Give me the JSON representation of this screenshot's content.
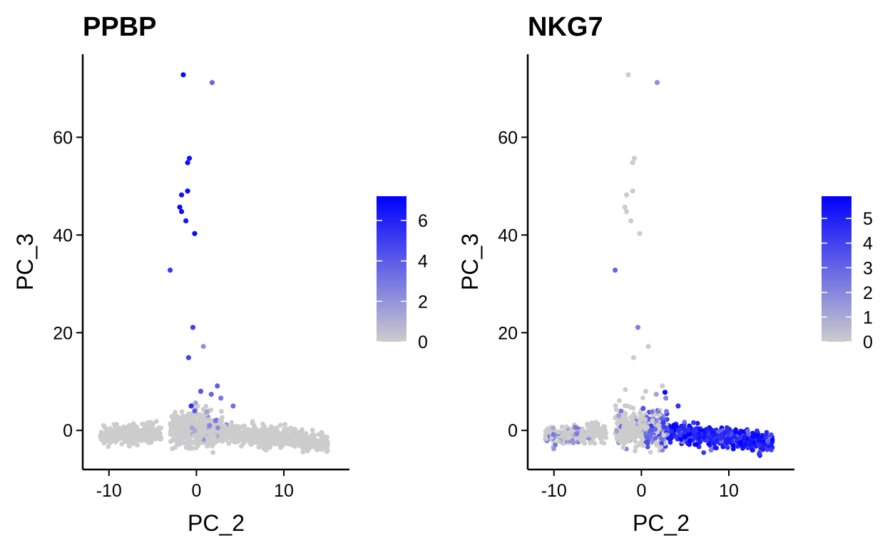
{
  "chart_data": [
    {
      "type": "scatter",
      "title": "PPBP",
      "xlabel": "PC_2",
      "ylabel": "PC_3",
      "xlim": [
        -13,
        17.5
      ],
      "ylim": [
        -8,
        77
      ],
      "xticks": [
        -10,
        0,
        10
      ],
      "yticks": [
        0,
        20,
        40,
        60
      ],
      "xtick_labels": [
        "-10",
        "0",
        "10"
      ],
      "ytick_labels": [
        "0",
        "20",
        "40",
        "60"
      ],
      "color_low": "#cccccc",
      "color_high": "#0000ff",
      "legend": {
        "placement": "right",
        "min": 0,
        "max": 7.2,
        "ticks": [
          0,
          2,
          4,
          6
        ],
        "tick_labels": [
          "0",
          "2",
          "4",
          "6"
        ]
      },
      "highlight_points": [
        {
          "x": -1.5,
          "y": 72.8,
          "v": 6.8
        },
        {
          "x": 1.8,
          "y": 71.2,
          "v": 3.5
        },
        {
          "x": -0.8,
          "y": 55.7,
          "v": 6.5
        },
        {
          "x": -1.0,
          "y": 54.8,
          "v": 6.7
        },
        {
          "x": -1.0,
          "y": 49.0,
          "v": 6.9
        },
        {
          "x": -1.7,
          "y": 48.2,
          "v": 6.6
        },
        {
          "x": -1.9,
          "y": 45.7,
          "v": 6.8
        },
        {
          "x": -1.7,
          "y": 44.8,
          "v": 6.7
        },
        {
          "x": -1.2,
          "y": 42.9,
          "v": 6.5
        },
        {
          "x": -0.2,
          "y": 40.3,
          "v": 6.9
        },
        {
          "x": -3.0,
          "y": 32.8,
          "v": 5.2
        },
        {
          "x": -0.4,
          "y": 21.1,
          "v": 5.0
        },
        {
          "x": 0.8,
          "y": 17.2,
          "v": 2.0
        },
        {
          "x": -0.9,
          "y": 14.9,
          "v": 4.8
        },
        {
          "x": 2.4,
          "y": 9.1,
          "v": 3.8
        },
        {
          "x": 0.5,
          "y": 8.0,
          "v": 4.2
        },
        {
          "x": 1.7,
          "y": 7.4,
          "v": 3.6
        },
        {
          "x": 2.8,
          "y": 6.6,
          "v": 3.0
        },
        {
          "x": -0.6,
          "y": 5.0,
          "v": 5.6
        },
        {
          "x": 4.2,
          "y": 5.0,
          "v": 3.2
        },
        {
          "x": -0.2,
          "y": 4.0,
          "v": 4.0
        },
        {
          "x": 1.2,
          "y": 3.8,
          "v": 1.5
        },
        {
          "x": 2.2,
          "y": 2.0,
          "v": 3.0
        },
        {
          "x": 1.5,
          "y": 1.0,
          "v": 2.5
        }
      ]
    },
    {
      "type": "scatter",
      "title": "NKG7",
      "xlabel": "PC_2",
      "ylabel": "PC_3",
      "xlim": [
        -13,
        17.5
      ],
      "ylim": [
        -8,
        77
      ],
      "xticks": [
        -10,
        0,
        10
      ],
      "yticks": [
        0,
        20,
        40,
        60
      ],
      "xtick_labels": [
        "-10",
        "0",
        "10"
      ],
      "ytick_labels": [
        "0",
        "20",
        "40",
        "60"
      ],
      "color_low": "#cccccc",
      "color_high": "#0000ff",
      "legend": {
        "placement": "right",
        "min": 0,
        "max": 5.9,
        "ticks": [
          0,
          1,
          2,
          3,
          4,
          5
        ],
        "tick_labels": [
          "0",
          "1",
          "2",
          "3",
          "4",
          "5"
        ]
      },
      "highlight_points": [
        {
          "x": -1.5,
          "y": 72.8,
          "v": 0
        },
        {
          "x": 1.8,
          "y": 71.2,
          "v": 1.8
        },
        {
          "x": -0.8,
          "y": 55.7,
          "v": 0
        },
        {
          "x": -1.0,
          "y": 54.8,
          "v": 0
        },
        {
          "x": -1.0,
          "y": 49.0,
          "v": 0
        },
        {
          "x": -1.7,
          "y": 48.2,
          "v": 0
        },
        {
          "x": -1.9,
          "y": 45.7,
          "v": 0
        },
        {
          "x": -1.7,
          "y": 44.8,
          "v": 0
        },
        {
          "x": -1.2,
          "y": 42.9,
          "v": 0
        },
        {
          "x": -0.2,
          "y": 40.3,
          "v": 0
        },
        {
          "x": -3.0,
          "y": 32.8,
          "v": 3.0
        },
        {
          "x": -0.4,
          "y": 21.1,
          "v": 2.2
        },
        {
          "x": 0.8,
          "y": 17.2,
          "v": 0
        },
        {
          "x": -0.9,
          "y": 14.9,
          "v": 0
        },
        {
          "x": 2.4,
          "y": 9.1,
          "v": 0
        },
        {
          "x": 2.7,
          "y": 7.8,
          "v": 5.5
        },
        {
          "x": 0.5,
          "y": 8.0,
          "v": 0
        },
        {
          "x": 1.7,
          "y": 7.4,
          "v": 1.2
        },
        {
          "x": 2.8,
          "y": 6.6,
          "v": 2.0
        },
        {
          "x": 4.2,
          "y": 5.0,
          "v": 4.5
        },
        {
          "x": 0.2,
          "y": 4.5,
          "v": 3.5
        },
        {
          "x": 1.2,
          "y": 3.8,
          "v": 2.5
        }
      ]
    }
  ]
}
